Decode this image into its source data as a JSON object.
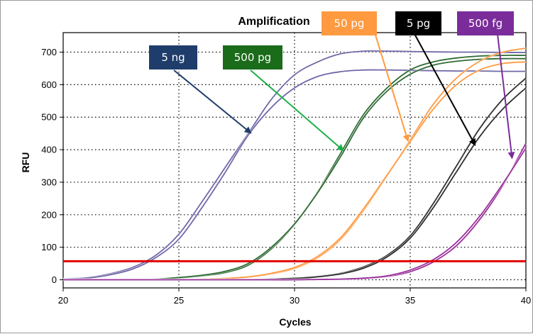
{
  "chart_data": {
    "type": "line",
    "title": "Amplification",
    "xlabel": "Cycles",
    "ylabel": "RFU",
    "xlim": [
      20,
      40
    ],
    "ylim": [
      -25,
      760
    ],
    "xticks": [
      20,
      25,
      30,
      35,
      40
    ],
    "yticks": [
      0,
      100,
      200,
      300,
      400,
      500,
      600,
      700
    ],
    "grid": true,
    "threshold": 57,
    "threshold_color": "#e00000",
    "series": [
      {
        "name": "5 ng",
        "color": "#6f68a8",
        "x": [
          20,
          21,
          22,
          23,
          24,
          25,
          26,
          27,
          28,
          29,
          30,
          31,
          32,
          33,
          34,
          35,
          36,
          37,
          38,
          39,
          40
        ],
        "y": [
          3,
          6,
          18,
          38,
          75,
          140,
          240,
          345,
          450,
          555,
          630,
          670,
          695,
          703,
          703,
          702,
          701,
          700,
          700,
          699,
          699
        ]
      },
      {
        "name": "5 ng",
        "color": "#6f68a8",
        "x": [
          20,
          21,
          22,
          23,
          24,
          25,
          26,
          27,
          28,
          29,
          30,
          31,
          32,
          33,
          34,
          35,
          36,
          37,
          38,
          39,
          40
        ],
        "y": [
          2,
          5,
          15,
          33,
          68,
          125,
          222,
          330,
          445,
          530,
          590,
          625,
          640,
          645,
          645,
          644,
          643,
          642,
          642,
          641,
          641
        ]
      },
      {
        "name": "500 pg",
        "color": "#2f6b33",
        "x": [
          20,
          21,
          22,
          23,
          24,
          25,
          26,
          27,
          28,
          29,
          30,
          31,
          32,
          33,
          34,
          35,
          36,
          37,
          38,
          39,
          40
        ],
        "y": [
          0,
          0,
          0,
          0,
          2,
          6,
          12,
          22,
          45,
          95,
          170,
          270,
          390,
          510,
          590,
          645,
          670,
          682,
          688,
          690,
          690
        ]
      },
      {
        "name": "500 pg",
        "color": "#2f6b33",
        "x": [
          20,
          21,
          22,
          23,
          24,
          25,
          26,
          27,
          28,
          29,
          30,
          31,
          32,
          33,
          34,
          35,
          36,
          37,
          38,
          39,
          40
        ],
        "y": [
          0,
          0,
          0,
          0,
          2,
          7,
          14,
          26,
          50,
          100,
          172,
          268,
          380,
          500,
          580,
          632,
          660,
          672,
          678,
          680,
          680
        ]
      },
      {
        "name": "50 pg",
        "color": "#ff9a40",
        "x": [
          20,
          21,
          22,
          23,
          24,
          25,
          26,
          27,
          28,
          29,
          30,
          31,
          32,
          33,
          34,
          35,
          36,
          37,
          38,
          39,
          40
        ],
        "y": [
          0,
          0,
          0,
          0,
          0,
          0,
          2,
          4,
          8,
          18,
          35,
          68,
          125,
          215,
          320,
          430,
          540,
          620,
          672,
          700,
          712
        ]
      },
      {
        "name": "50 pg",
        "color": "#ff9a40",
        "x": [
          20,
          21,
          22,
          23,
          24,
          25,
          26,
          27,
          28,
          29,
          30,
          31,
          32,
          33,
          34,
          35,
          36,
          37,
          38,
          39,
          40
        ],
        "y": [
          0,
          0,
          0,
          0,
          0,
          0,
          2,
          4,
          9,
          20,
          38,
          72,
          130,
          220,
          322,
          425,
          525,
          600,
          645,
          665,
          670
        ]
      },
      {
        "name": "5 pg",
        "color": "#303030",
        "x": [
          20,
          21,
          22,
          23,
          24,
          25,
          26,
          27,
          28,
          29,
          30,
          31,
          32,
          33,
          34,
          35,
          36,
          37,
          38,
          39,
          40
        ],
        "y": [
          0,
          0,
          0,
          0,
          0,
          0,
          0,
          0,
          0,
          2,
          5,
          10,
          20,
          40,
          75,
          135,
          235,
          350,
          465,
          555,
          620
        ]
      },
      {
        "name": "5 pg",
        "color": "#303030",
        "x": [
          20,
          21,
          22,
          23,
          24,
          25,
          26,
          27,
          28,
          29,
          30,
          31,
          32,
          33,
          34,
          35,
          36,
          37,
          38,
          39,
          40
        ],
        "y": [
          0,
          0,
          0,
          0,
          0,
          0,
          0,
          0,
          0,
          2,
          4,
          9,
          18,
          36,
          70,
          128,
          222,
          332,
          440,
          525,
          590
        ]
      },
      {
        "name": "500 fg",
        "color": "#9a2f9a",
        "x": [
          20,
          21,
          22,
          23,
          24,
          25,
          26,
          27,
          28,
          29,
          30,
          31,
          32,
          33,
          34,
          35,
          36,
          37,
          38,
          39,
          40
        ],
        "y": [
          0,
          0,
          0,
          0,
          0,
          0,
          0,
          0,
          0,
          0,
          0,
          1,
          2,
          4,
          10,
          25,
          55,
          105,
          185,
          290,
          420
        ]
      },
      {
        "name": "500 fg",
        "color": "#9a2f9a",
        "x": [
          20,
          21,
          22,
          23,
          24,
          25,
          26,
          27,
          28,
          29,
          30,
          31,
          32,
          33,
          34,
          35,
          36,
          37,
          38,
          39,
          40
        ],
        "y": [
          0,
          0,
          0,
          0,
          0,
          0,
          0,
          0,
          0,
          0,
          0,
          1,
          2,
          5,
          12,
          30,
          62,
          115,
          195,
          295,
          405
        ]
      }
    ]
  },
  "callouts": [
    {
      "label": "5 ng",
      "box_color": "#1f3d6b",
      "arrow_color": "#1f3d6b",
      "target": [
        28.1,
        452
      ]
    },
    {
      "label": "500 pg",
      "box_color": "#1a6b1a",
      "arrow_color": "#1fb04a",
      "target": [
        32.1,
        398
      ]
    },
    {
      "label": "50 pg",
      "box_color": "#ff9a40",
      "arrow_color": "#ff9a40",
      "target": [
        34.9,
        428
      ]
    },
    {
      "label": "5 pg",
      "box_color": "#000000",
      "arrow_color": "#000000",
      "target": [
        37.8,
        415
      ]
    },
    {
      "label": "500 fg",
      "box_color": "#7a2c9a",
      "arrow_color": "#7a2c9a",
      "target": [
        39.4,
        375
      ]
    }
  ]
}
